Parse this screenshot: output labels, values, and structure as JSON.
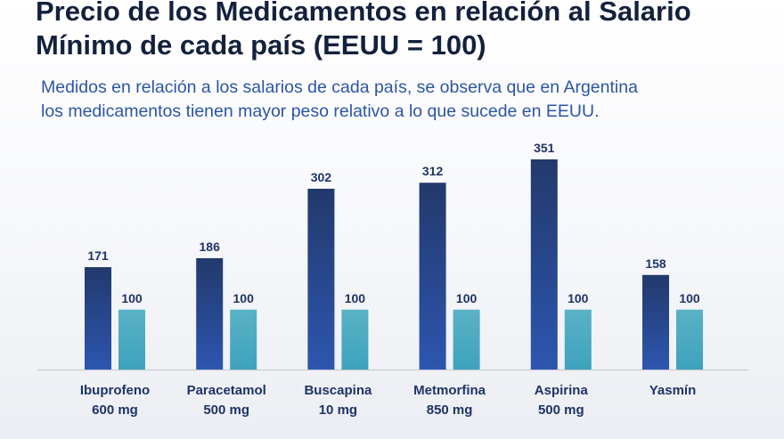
{
  "title": "Precio de los Medicamentos en relación al Salario\nMínimo de cada país (EEUU = 100)",
  "subtitle": "Medidos en relación a los salarios de cada país, se observa que en Argentina\nlos medicamentos tienen mayor peso relativo a lo que sucede en EEUU.",
  "colors": {
    "series_dark_top": "#22396b",
    "series_dark_bottom": "#2d56b0",
    "series_light_top": "#5ab2c6",
    "series_light_bottom": "#3ea2bd",
    "axis": "#c9ccd3"
  },
  "chart_data": {
    "type": "bar",
    "categories": [
      [
        "Ibuprofeno",
        "600 mg"
      ],
      [
        "Paracetamol",
        "500 mg"
      ],
      [
        "Buscapina",
        "10 mg"
      ],
      [
        "Metmorfina",
        "850 mg"
      ],
      [
        "Aspirina",
        "500 mg"
      ],
      [
        "Yasmín"
      ]
    ],
    "series": [
      {
        "values": [
          171,
          186,
          302,
          312,
          351,
          158
        ]
      },
      {
        "values": [
          100,
          100,
          100,
          100,
          100,
          100
        ]
      }
    ],
    "ylim": [
      0,
      351
    ],
    "grid": false,
    "legend": "none",
    "xlabel": "",
    "ylabel": ""
  }
}
